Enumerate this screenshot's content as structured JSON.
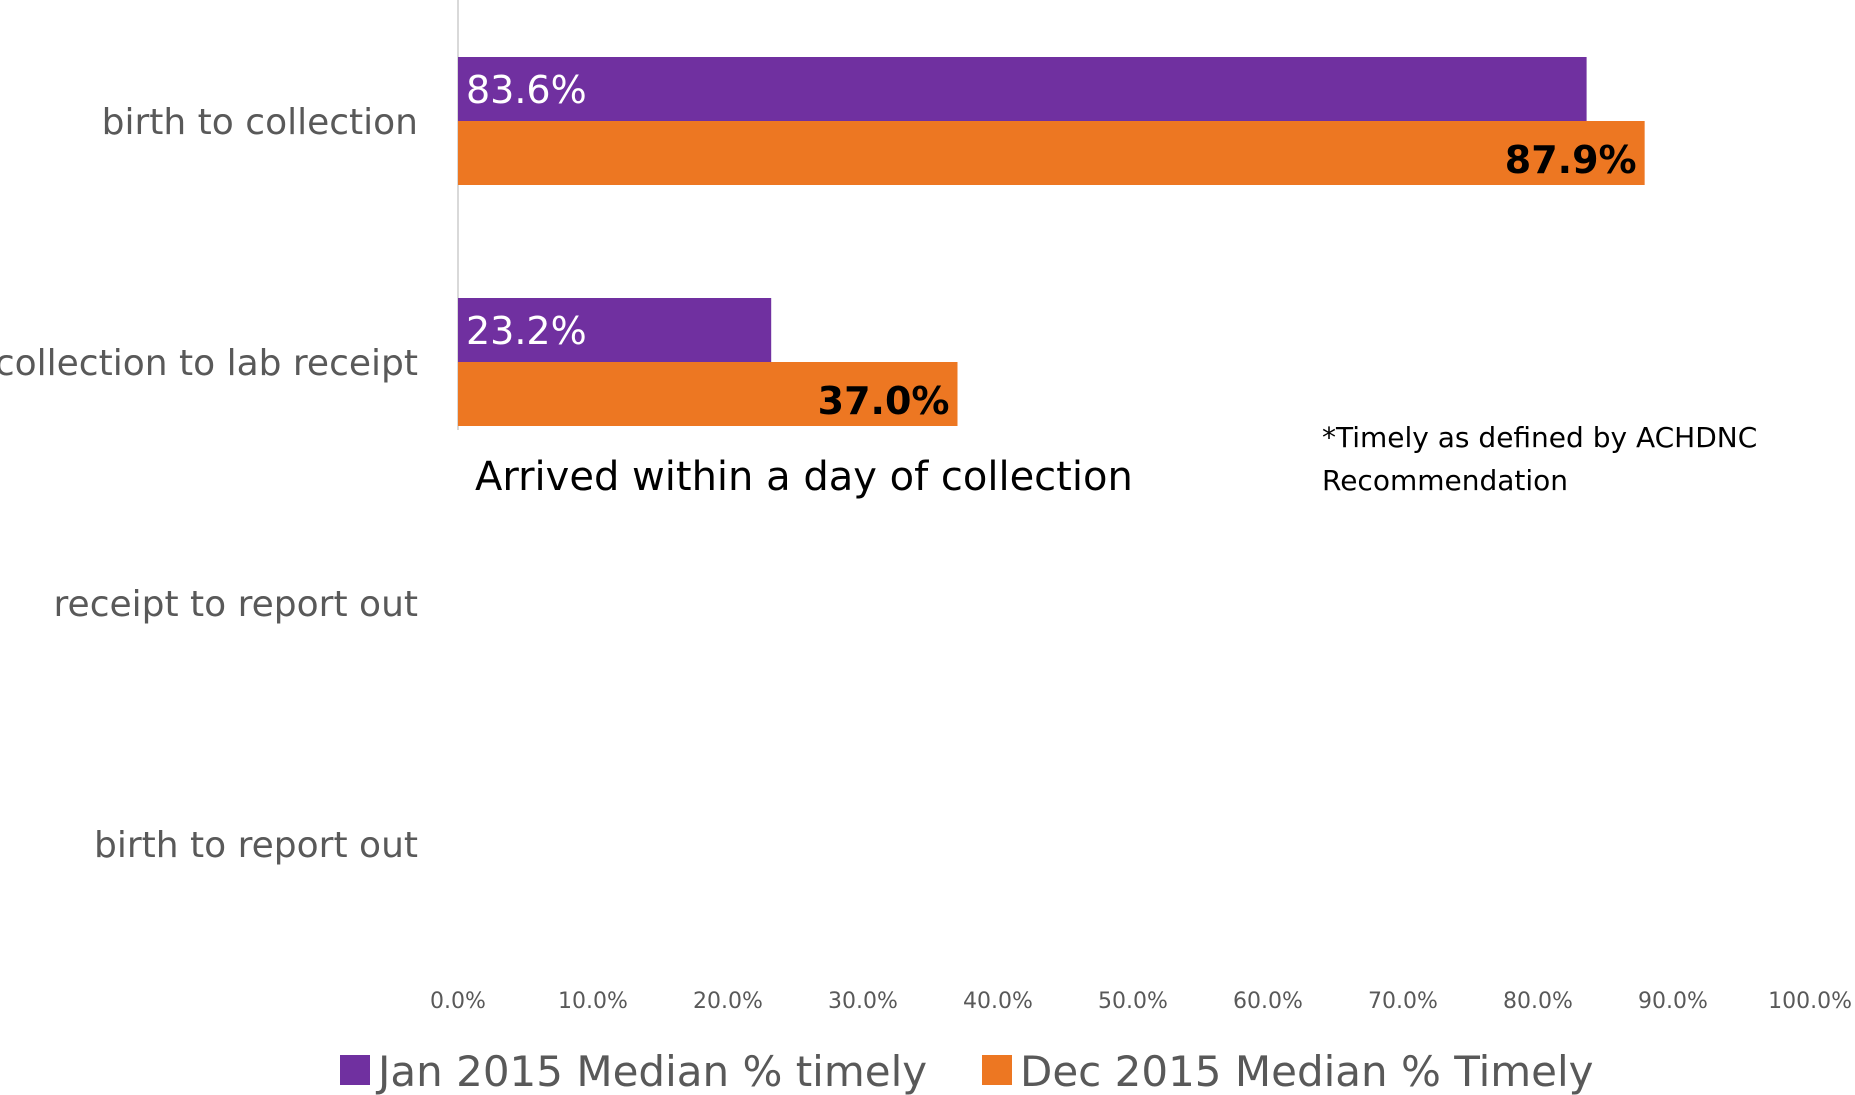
{
  "chart_data": {
    "type": "bar",
    "orientation": "horizontal",
    "categories": [
      "birth to collection",
      "collection to lab receipt",
      "receipt to report out",
      "birth to report out"
    ],
    "series": [
      {
        "name": "Jan 2015 Median % timely",
        "color": "#7030A0",
        "values": [
          83.6,
          23.2,
          null,
          null
        ],
        "labels": [
          "83.6%",
          "23.2%",
          "",
          ""
        ]
      },
      {
        "name": "Dec 2015 Median % Timely",
        "color": "#ED7722",
        "values": [
          87.9,
          37.0,
          null,
          null
        ],
        "labels": [
          "87.9%",
          "37.0%",
          "",
          ""
        ]
      }
    ],
    "xlim": [
      0,
      100
    ],
    "x_ticks": [
      "0.0%",
      "10.0%",
      "20.0%",
      "30.0%",
      "40.0%",
      "50.0%",
      "60.0%",
      "70.0%",
      "80.0%",
      "90.0%",
      "100.0%"
    ],
    "grid": false,
    "legend_position": "bottom",
    "annotations": [
      "Arrived within a day of collection",
      "*Timely as defined by ACHDNC",
      "Recommendation"
    ]
  }
}
